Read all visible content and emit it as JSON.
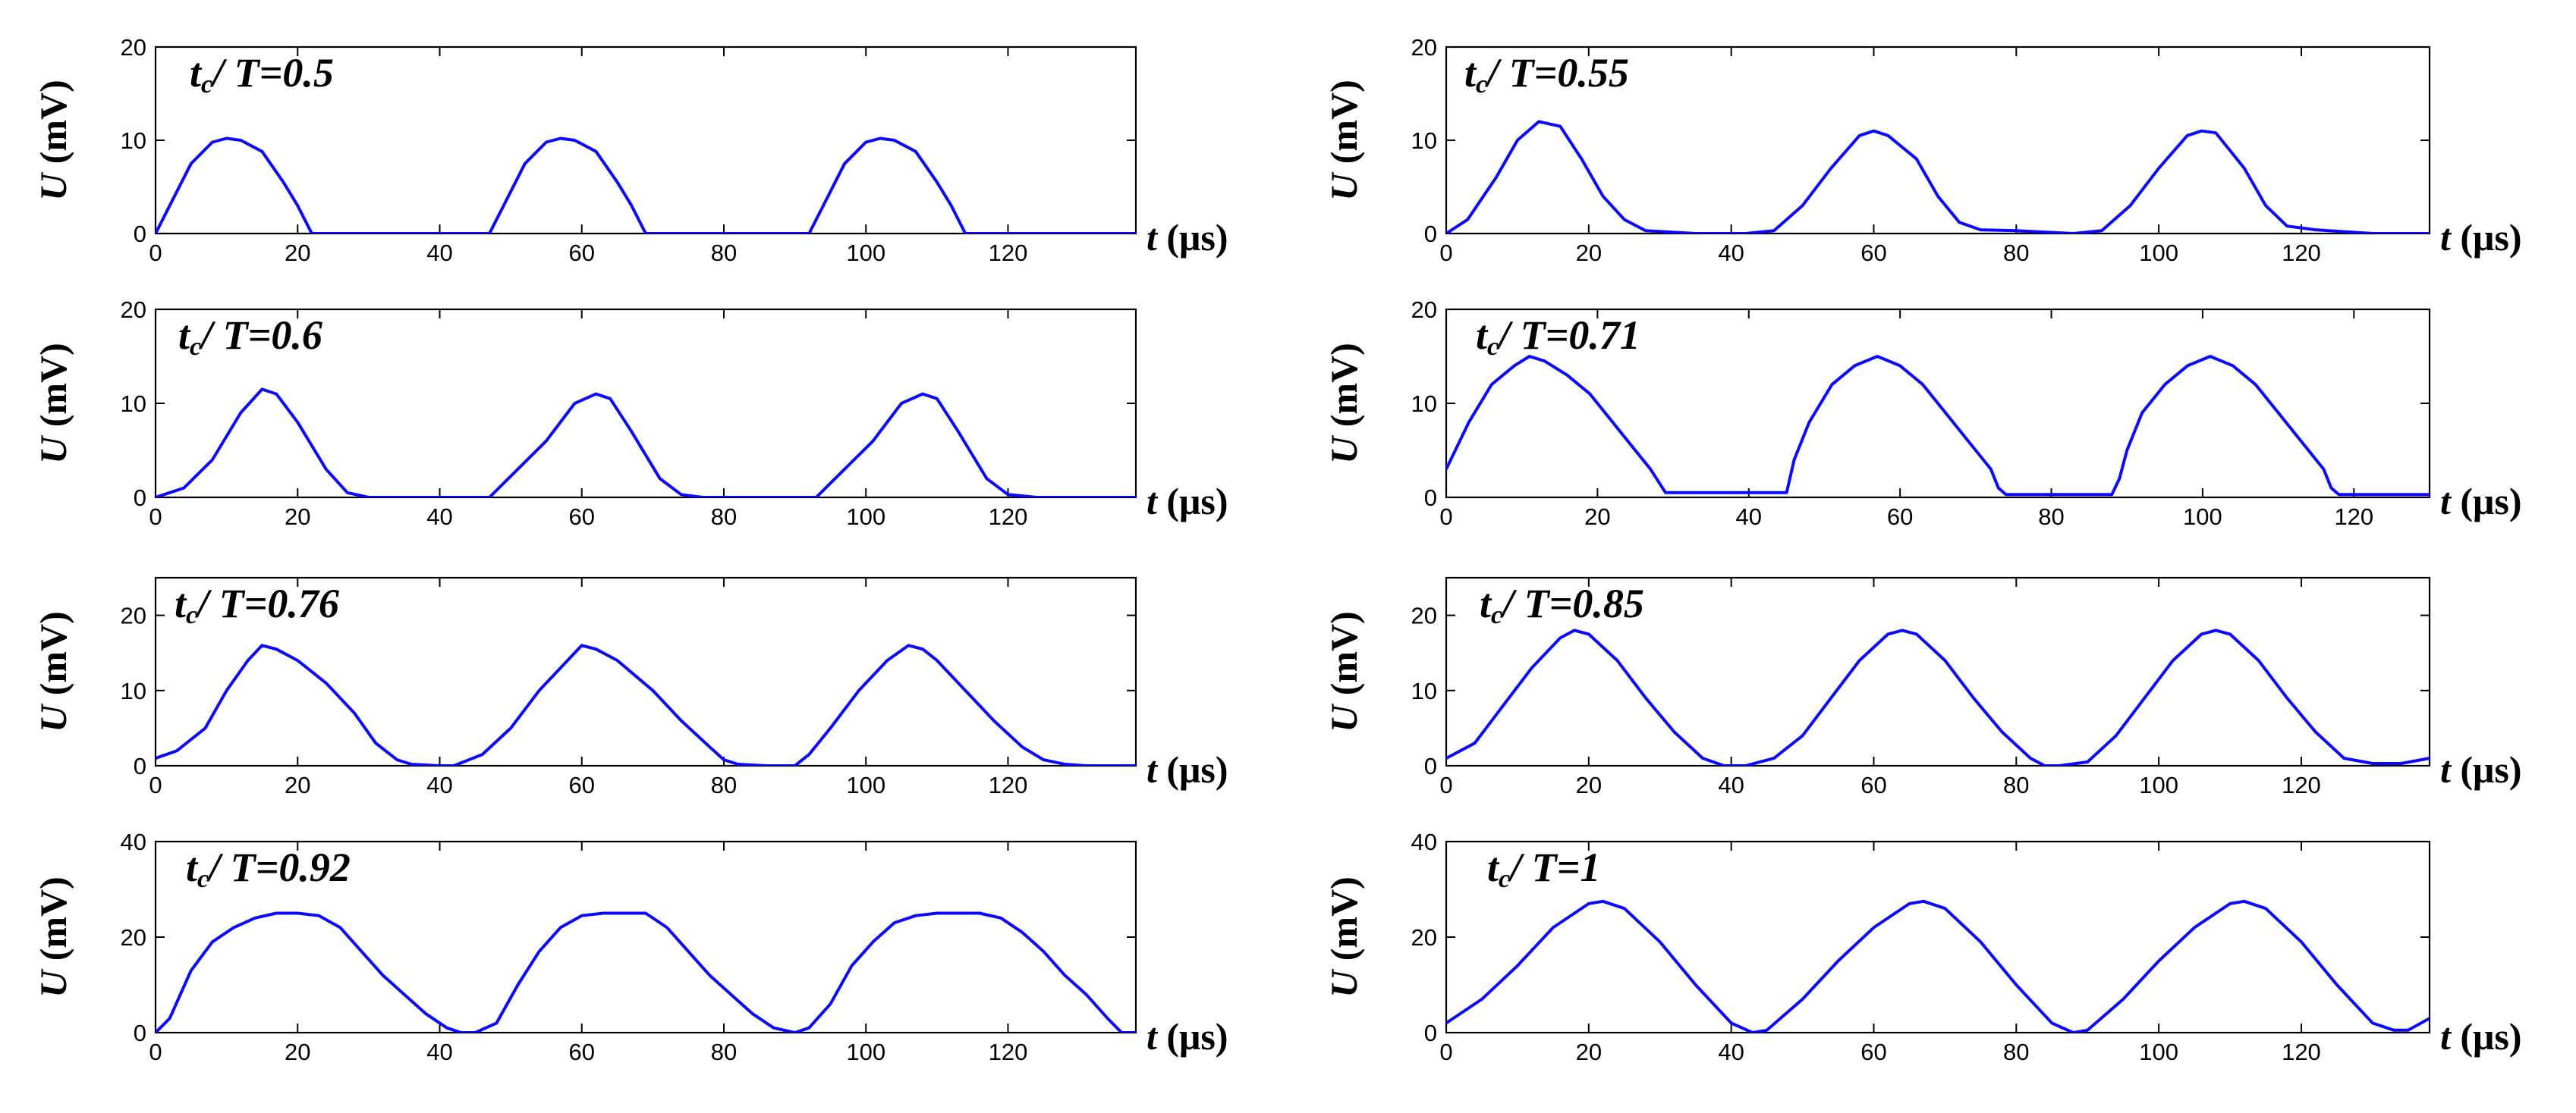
{
  "figure": {
    "y_unit_label": "(mV)",
    "x_unit_label": "(μs)",
    "y_var": "U",
    "x_var": "t",
    "annotation_var": "t",
    "annotation_sub": "c",
    "annotation_mid": "/ T="
  },
  "chart_data": [
    {
      "type": "line",
      "panel": "a",
      "annotation_value": "0.5",
      "xlim": [
        0,
        138
      ],
      "ylim": [
        0,
        20
      ],
      "xticks": [
        0,
        20,
        40,
        60,
        80,
        100,
        120
      ],
      "yticks": [
        0,
        10,
        20
      ],
      "xlabel": "t (μs)",
      "ylabel": "U (mV)",
      "series": [
        {
          "name": "U",
          "x": [
            0,
            2,
            5,
            8,
            10,
            12,
            15,
            18,
            20,
            22,
            47,
            49,
            52,
            55,
            57,
            59,
            62,
            65,
            67,
            69,
            92,
            94,
            97,
            100,
            102,
            104,
            107,
            110,
            112,
            114,
            138
          ],
          "y": [
            0,
            3,
            7.5,
            9.8,
            10.2,
            10,
            8.8,
            5.5,
            3,
            0,
            0,
            3,
            7.5,
            9.8,
            10.2,
            10,
            8.8,
            5.5,
            3,
            0,
            0,
            3,
            7.5,
            9.8,
            10.2,
            10,
            8.8,
            5.5,
            3,
            0,
            0
          ]
        }
      ]
    },
    {
      "type": "line",
      "panel": "b",
      "annotation_value": "0.55",
      "xlim": [
        0,
        138
      ],
      "ylim": [
        0,
        20
      ],
      "xticks": [
        0,
        20,
        40,
        60,
        80,
        100,
        120
      ],
      "yticks": [
        0,
        10,
        20
      ],
      "xlabel": "t (μs)",
      "ylabel": "U (mV)",
      "series": [
        {
          "name": "U",
          "x": [
            0,
            3,
            7,
            10,
            13,
            16,
            19,
            22,
            25,
            28,
            35,
            42,
            46,
            50,
            54,
            58,
            60,
            62,
            66,
            69,
            72,
            75,
            80,
            88,
            92,
            96,
            100,
            104,
            106,
            108,
            112,
            115,
            118,
            122,
            130,
            138
          ],
          "y": [
            0,
            1.5,
            6,
            10,
            12,
            11.5,
            8,
            4,
            1.5,
            0.3,
            0,
            0,
            0.3,
            3,
            7,
            10.5,
            11,
            10.5,
            8,
            4,
            1.2,
            0.4,
            0.3,
            0,
            0.3,
            3,
            7,
            10.5,
            11,
            10.8,
            7,
            3,
            0.8,
            0.4,
            0,
            0
          ]
        }
      ]
    },
    {
      "type": "line",
      "panel": "c",
      "annotation_value": "0.6",
      "xlim": [
        0,
        138
      ],
      "ylim": [
        0,
        20
      ],
      "xticks": [
        0,
        20,
        40,
        60,
        80,
        100,
        120
      ],
      "yticks": [
        0,
        10,
        20
      ],
      "xlabel": "t (μs)",
      "ylabel": "U (mV)",
      "series": [
        {
          "name": "U",
          "x": [
            0,
            4,
            8,
            12,
            15,
            17,
            20,
            24,
            27,
            30,
            35,
            47,
            51,
            55,
            59,
            62,
            64,
            67,
            71,
            74,
            77,
            93,
            97,
            101,
            105,
            108,
            110,
            113,
            117,
            120,
            124,
            138
          ],
          "y": [
            0,
            1,
            4,
            9,
            11.5,
            11,
            8,
            3,
            0.5,
            0,
            0,
            0,
            3,
            6,
            10,
            11,
            10.5,
            7,
            2,
            0.3,
            0,
            0,
            3,
            6,
            10,
            11,
            10.5,
            7,
            2,
            0.3,
            0,
            0
          ]
        }
      ]
    },
    {
      "type": "line",
      "panel": "d",
      "annotation_value": "0.71",
      "xlim": [
        0,
        130
      ],
      "ylim": [
        0,
        20
      ],
      "xticks": [
        0,
        20,
        40,
        60,
        80,
        100,
        120
      ],
      "yticks": [
        0,
        10,
        20
      ],
      "xlabel": "t (μs)",
      "ylabel": "U (mV)",
      "series": [
        {
          "name": "U",
          "x": [
            0,
            3,
            6,
            9,
            11,
            13,
            16,
            19,
            22,
            25,
            27,
            29,
            35,
            42,
            45,
            46,
            48,
            51,
            54,
            57,
            60,
            63,
            66,
            69,
            72,
            73,
            74,
            80,
            88,
            89,
            90,
            92,
            95,
            98,
            101,
            104,
            107,
            110,
            113,
            116,
            117,
            118,
            124,
            130
          ],
          "y": [
            3,
            8,
            12,
            14,
            15,
            14.5,
            13,
            11,
            8,
            5,
            3,
            0.5,
            0.5,
            0.5,
            0.5,
            4,
            8,
            12,
            14,
            15,
            14,
            12,
            9,
            6,
            3,
            1,
            0.3,
            0.3,
            0.3,
            2,
            5,
            9,
            12,
            14,
            15,
            14,
            12,
            9,
            6,
            3,
            1,
            0.3,
            0.3,
            0.3
          ]
        }
      ]
    },
    {
      "type": "line",
      "panel": "e",
      "annotation_value": "0.76",
      "xlim": [
        0,
        138
      ],
      "ylim": [
        0,
        25
      ],
      "xticks": [
        0,
        20,
        40,
        60,
        80,
        100,
        120
      ],
      "yticks": [
        0,
        10,
        20
      ],
      "xlabel": "t (μs)",
      "ylabel": "U (mV)",
      "series": [
        {
          "name": "U",
          "x": [
            0,
            3,
            7,
            10,
            13,
            15,
            17,
            20,
            24,
            28,
            31,
            34,
            36,
            40,
            42,
            46,
            50,
            54,
            58,
            60,
            62,
            65,
            70,
            74,
            78,
            80,
            82,
            86,
            90,
            92,
            95,
            99,
            103,
            106,
            108,
            110,
            114,
            118,
            122,
            125,
            128,
            131,
            138
          ],
          "y": [
            1,
            2,
            5,
            10,
            14,
            16,
            15.5,
            14,
            11,
            7,
            3,
            0.8,
            0.2,
            0,
            0,
            1.5,
            5,
            10,
            14,
            16,
            15.5,
            14,
            10,
            6,
            2.5,
            0.8,
            0.2,
            0,
            0,
            1.5,
            5,
            10,
            14,
            16,
            15.5,
            14,
            10,
            6,
            2.5,
            0.8,
            0.2,
            0,
            0
          ]
        }
      ]
    },
    {
      "type": "line",
      "panel": "f",
      "annotation_value": "0.85",
      "xlim": [
        0,
        138
      ],
      "ylim": [
        0,
        25
      ],
      "xticks": [
        0,
        20,
        40,
        60,
        80,
        100,
        120
      ],
      "yticks": [
        0,
        10,
        20
      ],
      "xlabel": "t (μs)",
      "ylabel": "U (mV)",
      "series": [
        {
          "name": "U",
          "x": [
            0,
            4,
            8,
            12,
            16,
            18,
            20,
            24,
            28,
            32,
            36,
            39,
            42,
            46,
            50,
            54,
            58,
            62,
            64,
            66,
            70,
            74,
            78,
            82,
            84,
            86,
            90,
            94,
            98,
            102,
            106,
            108,
            110,
            114,
            118,
            122,
            126,
            130,
            134,
            138
          ],
          "y": [
            1,
            3,
            8,
            13,
            17,
            18,
            17.5,
            14,
            9,
            4.5,
            1,
            0,
            0,
            1,
            4,
            9,
            14,
            17.5,
            18,
            17.5,
            14,
            9,
            4.5,
            1,
            0,
            0,
            0.5,
            4,
            9,
            14,
            17.5,
            18,
            17.5,
            14,
            9,
            4.5,
            1,
            0.3,
            0.3,
            1
          ]
        }
      ]
    },
    {
      "type": "line",
      "panel": "g",
      "annotation_value": "0.92",
      "xlim": [
        0,
        138
      ],
      "ylim": [
        0,
        40
      ],
      "xticks": [
        0,
        20,
        40,
        60,
        80,
        100,
        120
      ],
      "yticks": [
        0,
        20,
        40
      ],
      "xlabel": "t (μs)",
      "ylabel": "U (mV)",
      "series": [
        {
          "name": "U",
          "x": [
            0,
            2,
            5,
            8,
            11,
            14,
            17,
            20,
            23,
            26,
            29,
            32,
            35,
            38,
            41,
            43,
            45,
            48,
            51,
            54,
            57,
            60,
            63,
            66,
            69,
            72,
            75,
            78,
            81,
            84,
            87,
            90,
            92,
            95,
            98,
            101,
            104,
            107,
            110,
            113,
            116,
            119,
            122,
            125,
            128,
            131,
            134,
            136,
            138
          ],
          "y": [
            0,
            3,
            13,
            19,
            22,
            24,
            25,
            25,
            24.5,
            22,
            17,
            12,
            8,
            4,
            1,
            0,
            0,
            2,
            10,
            17,
            22,
            24.5,
            25,
            25,
            25,
            22,
            17,
            12,
            8,
            4,
            1,
            0,
            1,
            6,
            14,
            19,
            23,
            24.5,
            25,
            25,
            25,
            24,
            21,
            17,
            12,
            8,
            3,
            0,
            0
          ]
        }
      ]
    },
    {
      "type": "line",
      "panel": "h",
      "annotation_value": "1",
      "xlim": [
        0,
        138
      ],
      "ylim": [
        0,
        40
      ],
      "xticks": [
        0,
        20,
        40,
        60,
        80,
        100,
        120
      ],
      "yticks": [
        0,
        20,
        40
      ],
      "xlabel": "t (μs)",
      "ylabel": "U (mV)",
      "series": [
        {
          "name": "U",
          "x": [
            0,
            5,
            10,
            15,
            20,
            22,
            25,
            30,
            35,
            40,
            43,
            45,
            50,
            55,
            60,
            65,
            67,
            70,
            75,
            80,
            85,
            88,
            90,
            95,
            100,
            105,
            110,
            112,
            115,
            120,
            125,
            130,
            133,
            135,
            138
          ],
          "y": [
            2,
            7,
            14,
            22,
            27,
            27.5,
            26,
            19,
            10,
            2,
            0,
            0.5,
            7,
            15,
            22,
            27,
            27.5,
            26,
            19,
            10,
            2,
            0,
            0.5,
            7,
            15,
            22,
            27,
            27.5,
            26,
            19,
            10,
            2,
            0.5,
            0.5,
            3
          ]
        }
      ]
    }
  ]
}
